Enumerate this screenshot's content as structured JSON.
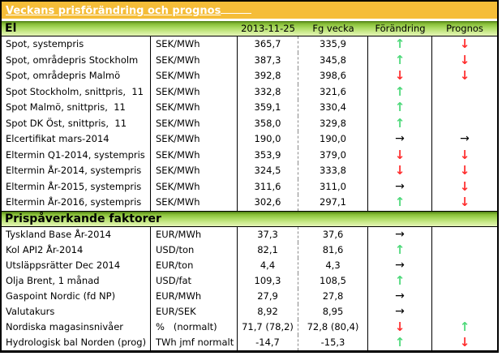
{
  "title": "Veckans prisförändring och prognos",
  "palette": {
    "title_bar_orange": "#F5BD38",
    "section_header_green": "#8CC43E",
    "arrow_up_green": "#4ED97A",
    "arrow_down_red": "#FF2E2E",
    "arrow_neutral_black": "#000000"
  },
  "columns": {
    "date": "2013-11-25",
    "previous": "Fg vecka",
    "change": "Förändring",
    "forecast": "Prognos"
  },
  "sections": [
    {
      "name": "El",
      "rows": [
        {
          "label": "Spot, systempris",
          "unit": "SEK/MWh",
          "current": "365,7",
          "previous": "335,9",
          "change": "up",
          "forecast": "down"
        },
        {
          "label": "Spot, områdepris Stockholm",
          "unit": "SEK/MWh",
          "current": "387,3",
          "previous": "345,8",
          "change": "up",
          "forecast": "down"
        },
        {
          "label": "Spot, områdepris Malmö",
          "unit": "SEK/MWh",
          "current": "392,8",
          "previous": "398,6",
          "change": "down",
          "forecast": "down"
        },
        {
          "label": "Spot Stockholm, snittpris,  11",
          "unit": "SEK/MWh",
          "current": "332,8",
          "previous": "321,6",
          "change": "up",
          "forecast": ""
        },
        {
          "label": "Spot Malmö, snittpris,  11",
          "unit": "SEK/MWh",
          "current": "359,1",
          "previous": "330,4",
          "change": "up",
          "forecast": ""
        },
        {
          "label": "Spot DK Öst, snittpris,  11",
          "unit": "SEK/MWh",
          "current": "358,0",
          "previous": "329,8",
          "change": "up",
          "forecast": ""
        },
        {
          "label": "Elcertifikat mars-2014",
          "unit": "SEK/MWh",
          "current": "190,0",
          "previous": "190,0",
          "change": "right",
          "forecast": "right"
        },
        {
          "label": "Eltermin Q1-2014, systempris",
          "unit": "SEK/MWh",
          "current": "353,9",
          "previous": "379,0",
          "change": "down",
          "forecast": "down"
        },
        {
          "label": "Eltermin År-2014, systempris",
          "unit": "SEK/MWh",
          "current": "324,5",
          "previous": "333,8",
          "change": "down",
          "forecast": "down"
        },
        {
          "label": "Eltermin År-2015, systempris",
          "unit": "SEK/MWh",
          "current": "311,6",
          "previous": "311,0",
          "change": "right",
          "forecast": "down"
        },
        {
          "label": "Eltermin År-2016, systempris",
          "unit": "SEK/MWh",
          "current": "302,6",
          "previous": "297,1",
          "change": "up",
          "forecast": "down"
        }
      ]
    },
    {
      "name": "Prispåverkande faktorer",
      "rows": [
        {
          "label": "Tyskland Base År-2014",
          "unit": "EUR/MWh",
          "current": "37,3",
          "previous": "37,6",
          "change": "right",
          "forecast": ""
        },
        {
          "label": "Kol API2 År-2014",
          "unit": "USD/ton",
          "current": "82,1",
          "previous": "81,6",
          "change": "up",
          "forecast": ""
        },
        {
          "label": "Utsläppsrätter Dec 2014",
          "unit": "EUR/ton",
          "current": "4,4",
          "previous": "4,3",
          "change": "right",
          "forecast": ""
        },
        {
          "label": "Olja Brent, 1 månad",
          "unit": "USD/fat",
          "current": "109,3",
          "previous": "108,5",
          "change": "up",
          "forecast": ""
        },
        {
          "label": "Gaspoint Nordic (fd NP)",
          "unit": "EUR/MWh",
          "current": "27,9",
          "previous": "27,8",
          "change": "right",
          "forecast": ""
        },
        {
          "label": "Valutakurs",
          "unit": "EUR/SEK",
          "current": "8,92",
          "previous": "8,95",
          "change": "right",
          "forecast": ""
        },
        {
          "label": "Nordiska magasinsnivåer",
          "unit": "%   (normalt)",
          "current": "71,7 (78,2)",
          "previous": "72,8 (80,4)",
          "change": "down",
          "forecast": "up"
        },
        {
          "label": "Hydrologisk bal Norden (prog)",
          "unit": "TWh jmf normalt",
          "current": "-14,7",
          "previous": "-15,3",
          "change": "up",
          "forecast": "down"
        }
      ]
    }
  ]
}
